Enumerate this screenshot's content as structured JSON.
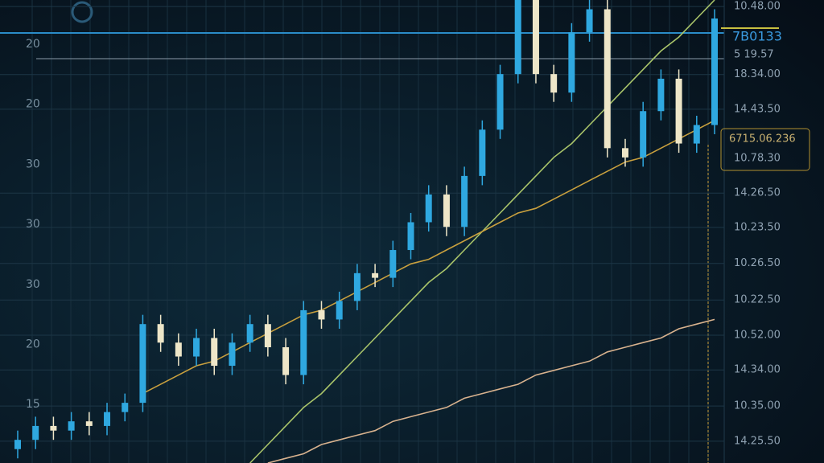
{
  "chart_data": {
    "type": "candlestick",
    "open": [
      3,
      5,
      8,
      7,
      9,
      8,
      11,
      13,
      30,
      26,
      23,
      27,
      21,
      26,
      30,
      25,
      19,
      33,
      31,
      35,
      41,
      40,
      46,
      52,
      58,
      51,
      62,
      72,
      84,
      100,
      84,
      80,
      93,
      98,
      68,
      66,
      76,
      83,
      69,
      73
    ],
    "close": [
      5,
      8,
      7,
      9,
      8,
      11,
      13,
      30,
      26,
      23,
      27,
      21,
      26,
      30,
      25,
      19,
      33,
      31,
      35,
      41,
      40,
      46,
      52,
      58,
      51,
      62,
      72,
      84,
      100,
      84,
      80,
      93,
      98,
      68,
      66,
      76,
      83,
      69,
      73,
      96
    ],
    "high": [
      7,
      10,
      10,
      11,
      11,
      13,
      15,
      32,
      32,
      28,
      29,
      29,
      28,
      32,
      32,
      27,
      35,
      35,
      37,
      43,
      43,
      48,
      54,
      60,
      60,
      64,
      74,
      86,
      100,
      100,
      86,
      95,
      100,
      100,
      70,
      78,
      85,
      85,
      75,
      98
    ],
    "low": [
      1,
      3,
      5,
      5,
      6,
      6,
      9,
      11,
      24,
      21,
      21,
      19,
      19,
      24,
      23,
      17,
      17,
      29,
      29,
      33,
      38,
      38,
      44,
      50,
      49,
      49,
      60,
      70,
      82,
      82,
      78,
      78,
      91,
      66,
      64,
      64,
      74,
      67,
      67,
      71
    ],
    "up_color": "#2fa8e0",
    "down_color": "#eee6c8",
    "series": [
      {
        "color": "#a9c46a",
        "values": [
          null,
          null,
          null,
          null,
          null,
          null,
          null,
          null,
          null,
          null,
          null,
          null,
          null,
          0,
          4,
          8,
          12,
          15,
          19,
          23,
          27,
          31,
          35,
          39,
          42,
          46,
          50,
          54,
          58,
          62,
          66,
          69,
          73,
          77,
          81,
          85,
          89,
          92,
          96,
          100
        ]
      },
      {
        "color": "#c9a03e",
        "values": [
          null,
          null,
          null,
          null,
          null,
          null,
          null,
          15,
          17,
          19,
          21,
          22,
          24,
          26,
          28,
          30,
          32,
          33,
          35,
          37,
          39,
          41,
          43,
          44,
          46,
          48,
          50,
          52,
          54,
          55,
          57,
          59,
          61,
          63,
          65,
          66,
          68,
          70,
          72,
          74
        ]
      },
      {
        "color": "#d8b28e",
        "values": [
          null,
          null,
          null,
          null,
          null,
          null,
          null,
          null,
          null,
          null,
          null,
          null,
          null,
          null,
          0,
          1,
          2,
          4,
          5,
          6,
          7,
          9,
          10,
          11,
          12,
          14,
          15,
          16,
          17,
          19,
          20,
          21,
          22,
          24,
          25,
          26,
          27,
          29,
          30,
          31
        ]
      }
    ],
    "ylim": [
      0,
      100
    ],
    "yticks": [
      {
        "value": 98.6,
        "label": "10.48.00"
      },
      {
        "value": 83.9,
        "label": "18.34.00"
      },
      {
        "value": 76.4,
        "label": "14.43.50"
      },
      {
        "value": 58.3,
        "label": "14.26.50"
      },
      {
        "value": 50.9,
        "label": "10.23.50"
      },
      {
        "value": 43.1,
        "label": "10.26.50"
      },
      {
        "value": 35.2,
        "label": "10.22.50"
      },
      {
        "value": 27.6,
        "label": "10.52.00"
      },
      {
        "value": 20.1,
        "label": "14.34.00"
      },
      {
        "value": 12.3,
        "label": "10.35.00"
      },
      {
        "value": 4.7,
        "label": "14.25.50"
      }
    ],
    "left_labels": [
      "20",
      "20",
      "30",
      "30",
      "30",
      "20",
      "15"
    ],
    "price_label": "7B0133",
    "sub_label": "5 19.57",
    "box_labels": [
      "6715.06.236",
      "10.78.30"
    ],
    "grid": true
  }
}
